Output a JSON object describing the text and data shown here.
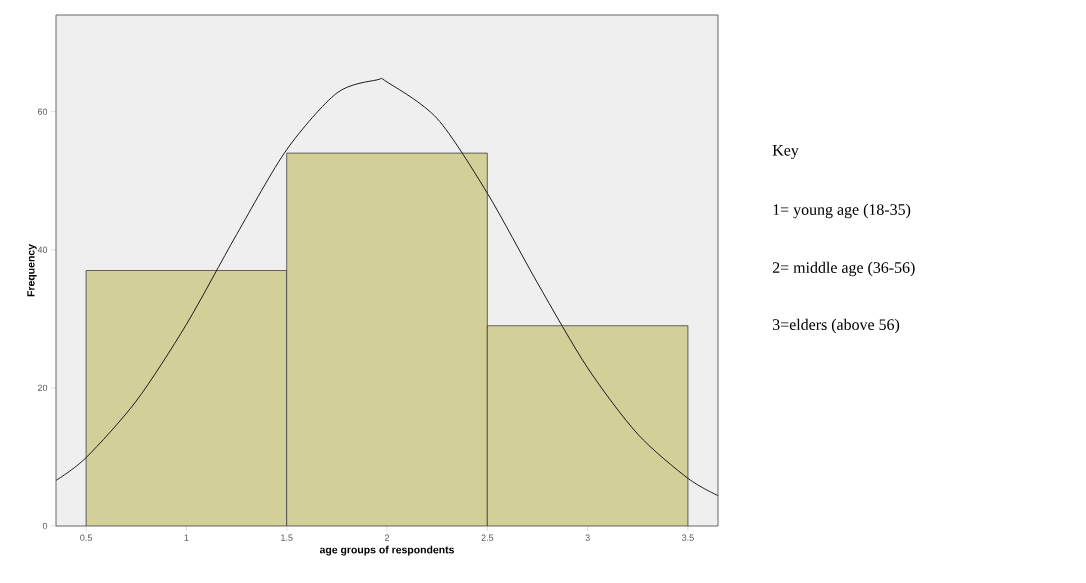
{
  "chart_data": {
    "type": "histogram",
    "xlabel": "age groups of respondents",
    "ylabel": "Frequency",
    "bins": [
      0.5,
      1.5,
      2.5,
      3.5
    ],
    "values": [
      37,
      54,
      29
    ],
    "color": "#d3cf99",
    "series": [
      {
        "type": "line",
        "color": "#1a1a1a",
        "x": [
          0.35,
          0.5,
          0.75,
          1.0,
          1.25,
          1.5,
          1.75,
          1.95,
          2.0,
          2.25,
          2.5,
          2.75,
          3.0,
          3.25,
          3.5,
          3.65
        ],
        "values": [
          6.6,
          9.9,
          18.1,
          29.2,
          42.2,
          54.5,
          62.7,
          64.6,
          64.3,
          59.0,
          48.2,
          35.2,
          22.9,
          13.3,
          6.9,
          4.4
        ]
      }
    ],
    "xlim": [
      0.35,
      3.65
    ],
    "ylim": [
      0,
      74
    ],
    "xticks": [
      0.5,
      1,
      1.5,
      2,
      2.5,
      3,
      3.5
    ],
    "yticks": [
      0,
      20,
      40,
      60
    ],
    "grid": false,
    "annotations": [
      "Key",
      "1= young age (18-35)",
      "2= middle age (36-56)",
      "3=elders (above 56)"
    ]
  }
}
